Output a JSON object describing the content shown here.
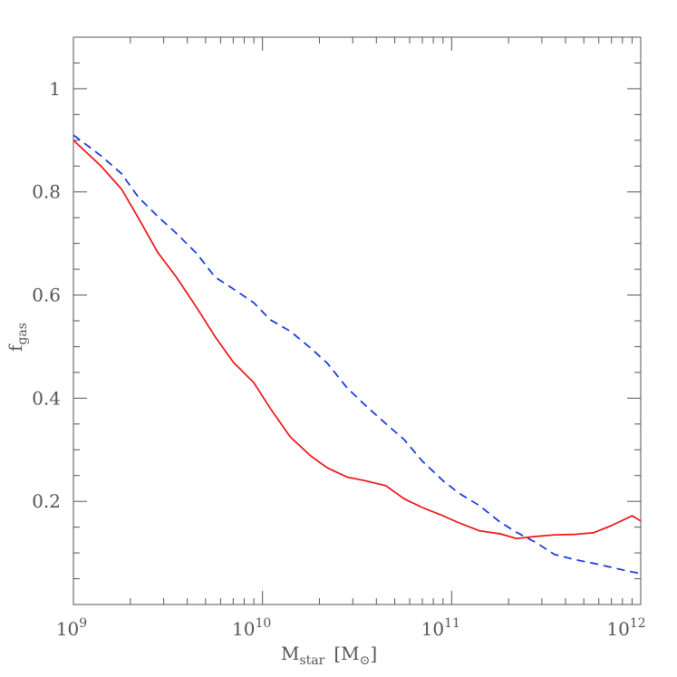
{
  "chart_data": {
    "type": "line",
    "xlabel": "M",
    "xlabel_sub": "star",
    "xlabel_unit": "[M⊙]",
    "xlabel_unit_open": "[M",
    "xlabel_unit_sub": "⊙",
    "xlabel_unit_close": "]",
    "ylabel": "f",
    "ylabel_sub": "gas",
    "xscale": "log",
    "xlim": [
      1000000000.0,
      1000000000000.0
    ],
    "ylim": [
      0,
      1.1
    ],
    "grid": false,
    "x_ticks": [
      {
        "base": "10",
        "exp": "9",
        "value": 1000000000.0
      },
      {
        "base": "10",
        "exp": "10",
        "value": 10000000000.0
      },
      {
        "base": "10",
        "exp": "11",
        "value": 100000000000.0
      },
      {
        "base": "10",
        "exp": "12",
        "value": 1000000000000.0
      }
    ],
    "y_ticks": [
      {
        "label": "0.2",
        "value": 0.2
      },
      {
        "label": "0.4",
        "value": 0.4
      },
      {
        "label": "0.6",
        "value": 0.6
      },
      {
        "label": "0.8",
        "value": 0.8
      },
      {
        "label": "1",
        "value": 1.0
      }
    ],
    "series": [
      {
        "color": "#ee1111",
        "dash": "solid",
        "x": [
          1000000000.0,
          1400000000.0,
          1800000000.0,
          2200000000.0,
          2800000000.0,
          3500000000.0,
          4500000000.0,
          5600000000.0,
          7000000000.0,
          9000000000.0,
          11000000000.0,
          14000000000.0,
          18000000000.0,
          22000000000.0,
          28000000000.0,
          35000000000.0,
          45000000000.0,
          56000000000.0,
          70000000000.0,
          90000000000.0,
          110000000000.0,
          140000000000.0,
          180000000000.0,
          220000000000.0,
          280000000000.0,
          350000000000.0,
          450000000000.0,
          560000000000.0,
          700000000000.0,
          900000000000.0,
          1000000000000.0
        ],
        "y": [
          0.9,
          0.85,
          0.805,
          0.75,
          0.682,
          0.635,
          0.575,
          0.52,
          0.47,
          0.43,
          0.38,
          0.325,
          0.288,
          0.265,
          0.247,
          0.24,
          0.23,
          0.205,
          0.188,
          0.172,
          0.158,
          0.143,
          0.137,
          0.128,
          0.132,
          0.135,
          0.136,
          0.139,
          0.153,
          0.172,
          0.162
        ]
      },
      {
        "color": "#1133dd",
        "dash": "dashed",
        "x": [
          1000000000.0,
          1400000000.0,
          1800000000.0,
          2200000000.0,
          2800000000.0,
          3500000000.0,
          4500000000.0,
          5600000000.0,
          7000000000.0,
          9000000000.0,
          11000000000.0,
          14000000000.0,
          18000000000.0,
          22000000000.0,
          28000000000.0,
          35000000000.0,
          45000000000.0,
          56000000000.0,
          70000000000.0,
          90000000000.0,
          110000000000.0,
          140000000000.0,
          180000000000.0,
          220000000000.0,
          280000000000.0,
          350000000000.0,
          450000000000.0,
          560000000000.0,
          700000000000.0,
          900000000000.0,
          1000000000000.0
        ],
        "y": [
          0.91,
          0.87,
          0.835,
          0.79,
          0.752,
          0.72,
          0.68,
          0.635,
          0.612,
          0.585,
          0.552,
          0.53,
          0.497,
          0.468,
          0.42,
          0.386,
          0.35,
          0.32,
          0.278,
          0.24,
          0.215,
          0.192,
          0.16,
          0.14,
          0.12,
          0.097,
          0.087,
          0.08,
          0.072,
          0.063,
          0.06
        ]
      }
    ]
  }
}
